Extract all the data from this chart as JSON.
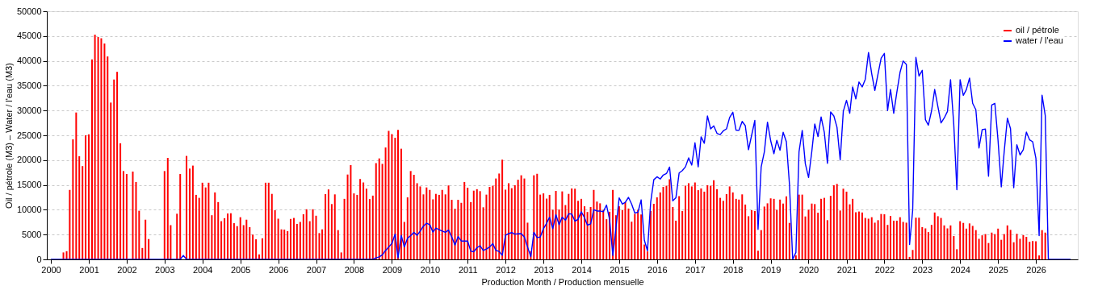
{
  "chart_data": {
    "type": "bar",
    "xlabel": "Production Month / Production mensuelle",
    "ylabel": "Oil / pétrole (M3) – Water / l'eau (M3)",
    "x": [
      "2000-01",
      "2000-02",
      "2000-03",
      "2000-04",
      "2000-05",
      "2000-06",
      "2000-07",
      "2000-08",
      "2000-09",
      "2000-10",
      "2000-11",
      "2000-12",
      "2001-01",
      "2001-02",
      "2001-03",
      "2001-04",
      "2001-05",
      "2001-06",
      "2001-07",
      "2001-08",
      "2001-09",
      "2001-10",
      "2001-11",
      "2001-12",
      "2002-01",
      "2002-02",
      "2002-03",
      "2002-04",
      "2002-05",
      "2002-06",
      "2002-07",
      "2002-08",
      "2002-09",
      "2002-10",
      "2002-11",
      "2002-12",
      "2003-01",
      "2003-02",
      "2003-03",
      "2003-04",
      "2003-05",
      "2003-06",
      "2003-07",
      "2003-08",
      "2003-09",
      "2003-10",
      "2003-11",
      "2003-12",
      "2004-01",
      "2004-02",
      "2004-03",
      "2004-04",
      "2004-05",
      "2004-06",
      "2004-07",
      "2004-08",
      "2004-09",
      "2004-10",
      "2004-11",
      "2004-12",
      "2005-01",
      "2005-02",
      "2005-03",
      "2005-04",
      "2005-05",
      "2005-06",
      "2005-07",
      "2005-08",
      "2005-09",
      "2005-10",
      "2005-11",
      "2005-12",
      "2006-01",
      "2006-02",
      "2006-03",
      "2006-04",
      "2006-05",
      "2006-06",
      "2006-07",
      "2006-08",
      "2006-09",
      "2006-10",
      "2006-11",
      "2006-12",
      "2007-01",
      "2007-02",
      "2007-03",
      "2007-04",
      "2007-05",
      "2007-06",
      "2007-07",
      "2007-08",
      "2007-09",
      "2007-10",
      "2007-11",
      "2007-12",
      "2008-01",
      "2008-02",
      "2008-03",
      "2008-04",
      "2008-05",
      "2008-06",
      "2008-07",
      "2008-08",
      "2008-09",
      "2008-10",
      "2008-11",
      "2008-12",
      "2009-01",
      "2009-02",
      "2009-03",
      "2009-04",
      "2009-05",
      "2009-06",
      "2009-07",
      "2009-08",
      "2009-09",
      "2009-10",
      "2009-11",
      "2009-12",
      "2010-01",
      "2010-02",
      "2010-03",
      "2010-04",
      "2010-05",
      "2010-06",
      "2010-07",
      "2010-08",
      "2010-09",
      "2010-10",
      "2010-11",
      "2010-12",
      "2011-01",
      "2011-02",
      "2011-03",
      "2011-04",
      "2011-05",
      "2011-06",
      "2011-07",
      "2011-08",
      "2011-09",
      "2011-10",
      "2011-11",
      "2011-12",
      "2012-01",
      "2012-02",
      "2012-03",
      "2012-04",
      "2012-05",
      "2012-06",
      "2012-07",
      "2012-08",
      "2012-09",
      "2012-10",
      "2012-11",
      "2012-12",
      "2013-01",
      "2013-02",
      "2013-03",
      "2013-04",
      "2013-05",
      "2013-06",
      "2013-07",
      "2013-08",
      "2013-09",
      "2013-10",
      "2013-11",
      "2013-12",
      "2014-01",
      "2014-02",
      "2014-03",
      "2014-04",
      "2014-05",
      "2014-06",
      "2014-07",
      "2014-08",
      "2014-09",
      "2014-10",
      "2014-11",
      "2014-12",
      "2015-01",
      "2015-02",
      "2015-03",
      "2015-04",
      "2015-05",
      "2015-06",
      "2015-07",
      "2015-08",
      "2015-09",
      "2015-10",
      "2015-11",
      "2015-12",
      "2016-01",
      "2016-02",
      "2016-03",
      "2016-04",
      "2016-05",
      "2016-06",
      "2016-07",
      "2016-08",
      "2016-09",
      "2016-10",
      "2016-11",
      "2016-12",
      "2017-01",
      "2017-02",
      "2017-03",
      "2017-04",
      "2017-05",
      "2017-06",
      "2017-07",
      "2017-08",
      "2017-09",
      "2017-10",
      "2017-11",
      "2017-12",
      "2018-01",
      "2018-02",
      "2018-03",
      "2018-04",
      "2018-05",
      "2018-06",
      "2018-07",
      "2018-08",
      "2018-09",
      "2018-10",
      "2018-11",
      "2018-12",
      "2019-01",
      "2019-02",
      "2019-03",
      "2019-04",
      "2019-05",
      "2019-06",
      "2019-07",
      "2019-08",
      "2019-09",
      "2019-10",
      "2019-11",
      "2019-12",
      "2020-01",
      "2020-02",
      "2020-03",
      "2020-04",
      "2020-05",
      "2020-06",
      "2020-07",
      "2020-08",
      "2020-09",
      "2020-10",
      "2020-11",
      "2020-12",
      "2021-01",
      "2021-02",
      "2021-03",
      "2021-04",
      "2021-05",
      "2021-06",
      "2021-07",
      "2021-08",
      "2021-09",
      "2021-10",
      "2021-11",
      "2021-12",
      "2022-01",
      "2022-02",
      "2022-03",
      "2022-04",
      "2022-05",
      "2022-06",
      "2022-07",
      "2022-08",
      "2022-09",
      "2022-10",
      "2022-11",
      "2022-12",
      "2023-01",
      "2023-02",
      "2023-03",
      "2023-04",
      "2023-05",
      "2023-06",
      "2023-07",
      "2023-08",
      "2023-09",
      "2023-10",
      "2023-11",
      "2023-12",
      "2024-01",
      "2024-02",
      "2024-03",
      "2024-04",
      "2024-05",
      "2024-06",
      "2024-07",
      "2024-08",
      "2024-09",
      "2024-10",
      "2024-11",
      "2024-12",
      "2025-01",
      "2025-02",
      "2025-03",
      "2025-04",
      "2025-05",
      "2025-06",
      "2025-07",
      "2025-08",
      "2025-09",
      "2025-10",
      "2025-11",
      "2025-12",
      "2026-01",
      "2026-02",
      "2026-03",
      "2026-04",
      "2026-05",
      "2026-06",
      "2026-07",
      "2026-08",
      "2026-09",
      "2026-10",
      "2026-11",
      "2026-12"
    ],
    "series": [
      {
        "name": "oil / pétrole",
        "color": "#ff0000",
        "values": [
          null,
          null,
          null,
          null,
          1400,
          1650,
          14000,
          24200,
          29600,
          20800,
          18800,
          25000,
          25200,
          40300,
          45300,
          44800,
          44550,
          43500,
          40900,
          31600,
          36250,
          37800,
          23400,
          17800,
          17200,
          null,
          17700,
          15600,
          9800,
          2300,
          8000,
          4100,
          null,
          null,
          null,
          null,
          17800,
          20450,
          6900,
          null,
          9200,
          17200,
          null,
          20850,
          18300,
          18900,
          13000,
          12400,
          15450,
          14500,
          15450,
          8900,
          13500,
          11550,
          7700,
          8300,
          9250,
          9300,
          7300,
          6700,
          8500,
          6900,
          8000,
          6500,
          5000,
          4050,
          1000,
          4250,
          15450,
          15450,
          13200,
          9900,
          8200,
          6050,
          6000,
          5700,
          8150,
          8350,
          7150,
          7550,
          9100,
          10100,
          7700,
          10100,
          8800,
          5300,
          6050,
          13150,
          14100,
          11150,
          13100,
          5900,
          1400,
          12200,
          17100,
          19000,
          13300,
          13000,
          16200,
          15500,
          14250,
          12150,
          12850,
          19400,
          20350,
          19250,
          22550,
          25900,
          25250,
          24500,
          26100,
          22300,
          7550,
          12500,
          17800,
          17050,
          15350,
          14700,
          13100,
          14500,
          14000,
          12100,
          13200,
          13000,
          14000,
          13100,
          14900,
          12000,
          10200,
          12000,
          11400,
          15600,
          14450,
          11550,
          13850,
          14150,
          13750,
          10500,
          13050,
          14600,
          14850,
          16300,
          17300,
          20100,
          14050,
          15350,
          14350,
          14950,
          16050,
          16950,
          16300,
          7400,
          1650,
          16950,
          17250,
          13050,
          13300,
          12250,
          13000,
          10000,
          13800,
          10050,
          13700,
          10950,
          13200,
          14300,
          14250,
          11800,
          12200,
          10700,
          9550,
          10550,
          14000,
          11650,
          11300,
          10000,
          8100,
          9600,
          14000,
          8900,
          10700,
          9950,
          11550,
          10250,
          7600,
          9200,
          10000,
          9050,
          3000,
          1600,
          9750,
          11200,
          12500,
          13500,
          14600,
          14850,
          16150,
          10550,
          7800,
          12750,
          9750,
          14850,
          15350,
          14700,
          15500,
          13950,
          14300,
          13650,
          14950,
          14850,
          15950,
          14150,
          12400,
          11800,
          13150,
          14700,
          13500,
          12200,
          12050,
          13100,
          11050,
          8700,
          9900,
          9750,
          1750,
          5900,
          10650,
          11300,
          12300,
          12200,
          10000,
          12050,
          11250,
          12700,
          7350,
          null,
          800,
          13050,
          13050,
          8650,
          10000,
          11250,
          11150,
          9400,
          12200,
          12400,
          7900,
          12800,
          14950,
          15200,
          9850,
          14250,
          13650,
          11100,
          12200,
          9500,
          9650,
          9450,
          8350,
          8200,
          8500,
          7400,
          7900,
          9150,
          9100,
          6950,
          8750,
          7800,
          7800,
          8500,
          7550,
          7400,
          500,
          1900,
          8400,
          8400,
          6500,
          6250,
          5500,
          6950,
          9450,
          8700,
          8350,
          6850,
          6250,
          6850,
          4700,
          2050,
          7700,
          7350,
          6200,
          7250,
          6750,
          5900,
          4150,
          4850,
          5100,
          3300,
          5400,
          5100,
          6200,
          3950,
          5100,
          6850,
          5950,
          3450,
          5150,
          4150,
          4900,
          4550,
          3550,
          3700,
          3650,
          800,
          5900,
          5400,
          null,
          null,
          null,
          null,
          null,
          null,
          null,
          null
        ]
      },
      {
        "name": "water / l'eau",
        "type": "line",
        "color": "#0000ff",
        "values": [
          0,
          0,
          0,
          0,
          0,
          0,
          0,
          0,
          0,
          0,
          0,
          0,
          0,
          0,
          0,
          0,
          0,
          0,
          0,
          0,
          0,
          0,
          0,
          0,
          0,
          0,
          0,
          0,
          0,
          0,
          0,
          0,
          0,
          0,
          0,
          0,
          0,
          0,
          0,
          0,
          0,
          0,
          800,
          0,
          0,
          0,
          0,
          0,
          0,
          0,
          0,
          0,
          0,
          0,
          0,
          0,
          0,
          0,
          0,
          0,
          0,
          0,
          0,
          0,
          0,
          0,
          0,
          0,
          0,
          0,
          0,
          0,
          0,
          0,
          0,
          0,
          0,
          0,
          0,
          0,
          0,
          0,
          0,
          0,
          0,
          0,
          0,
          0,
          0,
          0,
          0,
          0,
          0,
          0,
          0,
          0,
          0,
          0,
          0,
          0,
          0,
          0,
          0,
          300,
          500,
          900,
          1800,
          2500,
          3200,
          5100,
          300,
          4850,
          2500,
          4250,
          4800,
          5450,
          4850,
          5700,
          6700,
          7300,
          7000,
          5500,
          6300,
          6000,
          5700,
          5450,
          5900,
          4500,
          2900,
          4600,
          3700,
          3700,
          3700,
          1650,
          1550,
          2350,
          2750,
          1800,
          2100,
          2500,
          3150,
          1800,
          1600,
          830,
          4850,
          5200,
          5400,
          5100,
          5150,
          5200,
          4500,
          2500,
          550,
          5450,
          4400,
          4500,
          6200,
          7300,
          8500,
          6200,
          9000,
          7000,
          8500,
          7900,
          9200,
          9150,
          7700,
          8100,
          9600,
          8400,
          6900,
          7150,
          10000,
          9750,
          9750,
          9600,
          10950,
          8000,
          800,
          6300,
          12400,
          11150,
          11500,
          12500,
          11150,
          9350,
          9500,
          12000,
          3850,
          1750,
          11550,
          16050,
          16650,
          16200,
          17000,
          17300,
          18600,
          11800,
          12400,
          17400,
          17900,
          18650,
          20450,
          19000,
          23500,
          18650,
          24700,
          23400,
          28900,
          26300,
          26900,
          25400,
          25150,
          25900,
          26300,
          28600,
          29650,
          26050,
          26000,
          27800,
          26950,
          22100,
          25000,
          28000,
          6050,
          18600,
          21700,
          27650,
          23900,
          21300,
          24000,
          22000,
          25600,
          23700,
          15100,
          0,
          1400,
          21700,
          26000,
          19250,
          16500,
          21700,
          27300,
          24750,
          28700,
          25600,
          19350,
          29700,
          28900,
          26650,
          20050,
          29850,
          32050,
          29450,
          34750,
          32350,
          35750,
          34750,
          36300,
          41700,
          37400,
          34050,
          37400,
          40550,
          41500,
          30000,
          34250,
          29450,
          33650,
          37700,
          40000,
          39300,
          3000,
          9900,
          40700,
          36950,
          38100,
          28150,
          27050,
          29950,
          34250,
          30800,
          27500,
          28500,
          29800,
          36200,
          27200,
          14050,
          36200,
          33050,
          34200,
          36550,
          31450,
          30150,
          22450,
          26150,
          26250,
          16750,
          31100,
          31450,
          23900,
          14600,
          21700,
          28450,
          26350,
          14450,
          23100,
          21050,
          22100,
          25650,
          24100,
          23700,
          20350,
          4800,
          33100,
          29000,
          0,
          0,
          0,
          0,
          0,
          0,
          0,
          0
        ]
      }
    ],
    "xlim": [
      "2000-01",
      "2027-01"
    ],
    "xticks": [
      "2000",
      "2001",
      "2002",
      "2003",
      "2004",
      "2005",
      "2006",
      "2007",
      "2008",
      "2009",
      "2010",
      "2011",
      "2012",
      "2013",
      "2014",
      "2015",
      "2016",
      "2017",
      "2018",
      "2019",
      "2020",
      "2021",
      "2022",
      "2023",
      "2024",
      "2025",
      "2026"
    ],
    "ylim": [
      0,
      50000
    ],
    "yticks": [
      0,
      5000,
      10000,
      15000,
      20000,
      25000,
      30000,
      35000,
      40000,
      45000,
      50000
    ],
    "grid": "y",
    "legend": "top right"
  }
}
